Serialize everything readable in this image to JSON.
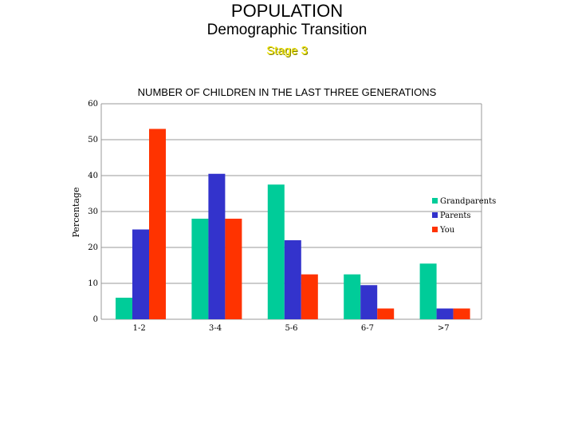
{
  "header": {
    "title": "POPULATION",
    "subtitle": "Demographic Transition",
    "stage": "Stage 3"
  },
  "colors": {
    "grandparents": "#00cc99",
    "parents": "#3333cc",
    "you": "#ff3300",
    "stage_text": "#f2e600"
  },
  "chart_data": {
    "type": "bar",
    "title": "NUMBER OF CHILDREN IN THE LAST THREE GENERATIONS",
    "xlabel": "",
    "ylabel": "Percentage",
    "categories": [
      "1-2",
      "3-4",
      "5-6",
      "6-7",
      ">7"
    ],
    "series": [
      {
        "name": "Grandparents",
        "values": [
          6,
          28,
          37.5,
          12.5,
          15.5
        ]
      },
      {
        "name": "Parents",
        "values": [
          25,
          40.5,
          22,
          9.5,
          3
        ]
      },
      {
        "name": "You",
        "values": [
          53,
          28,
          12.5,
          3,
          3
        ]
      }
    ],
    "ylim": [
      0,
      60
    ],
    "yticks": [
      0,
      10,
      20,
      30,
      40,
      50,
      60
    ],
    "grid": true,
    "legend_position": "right"
  }
}
